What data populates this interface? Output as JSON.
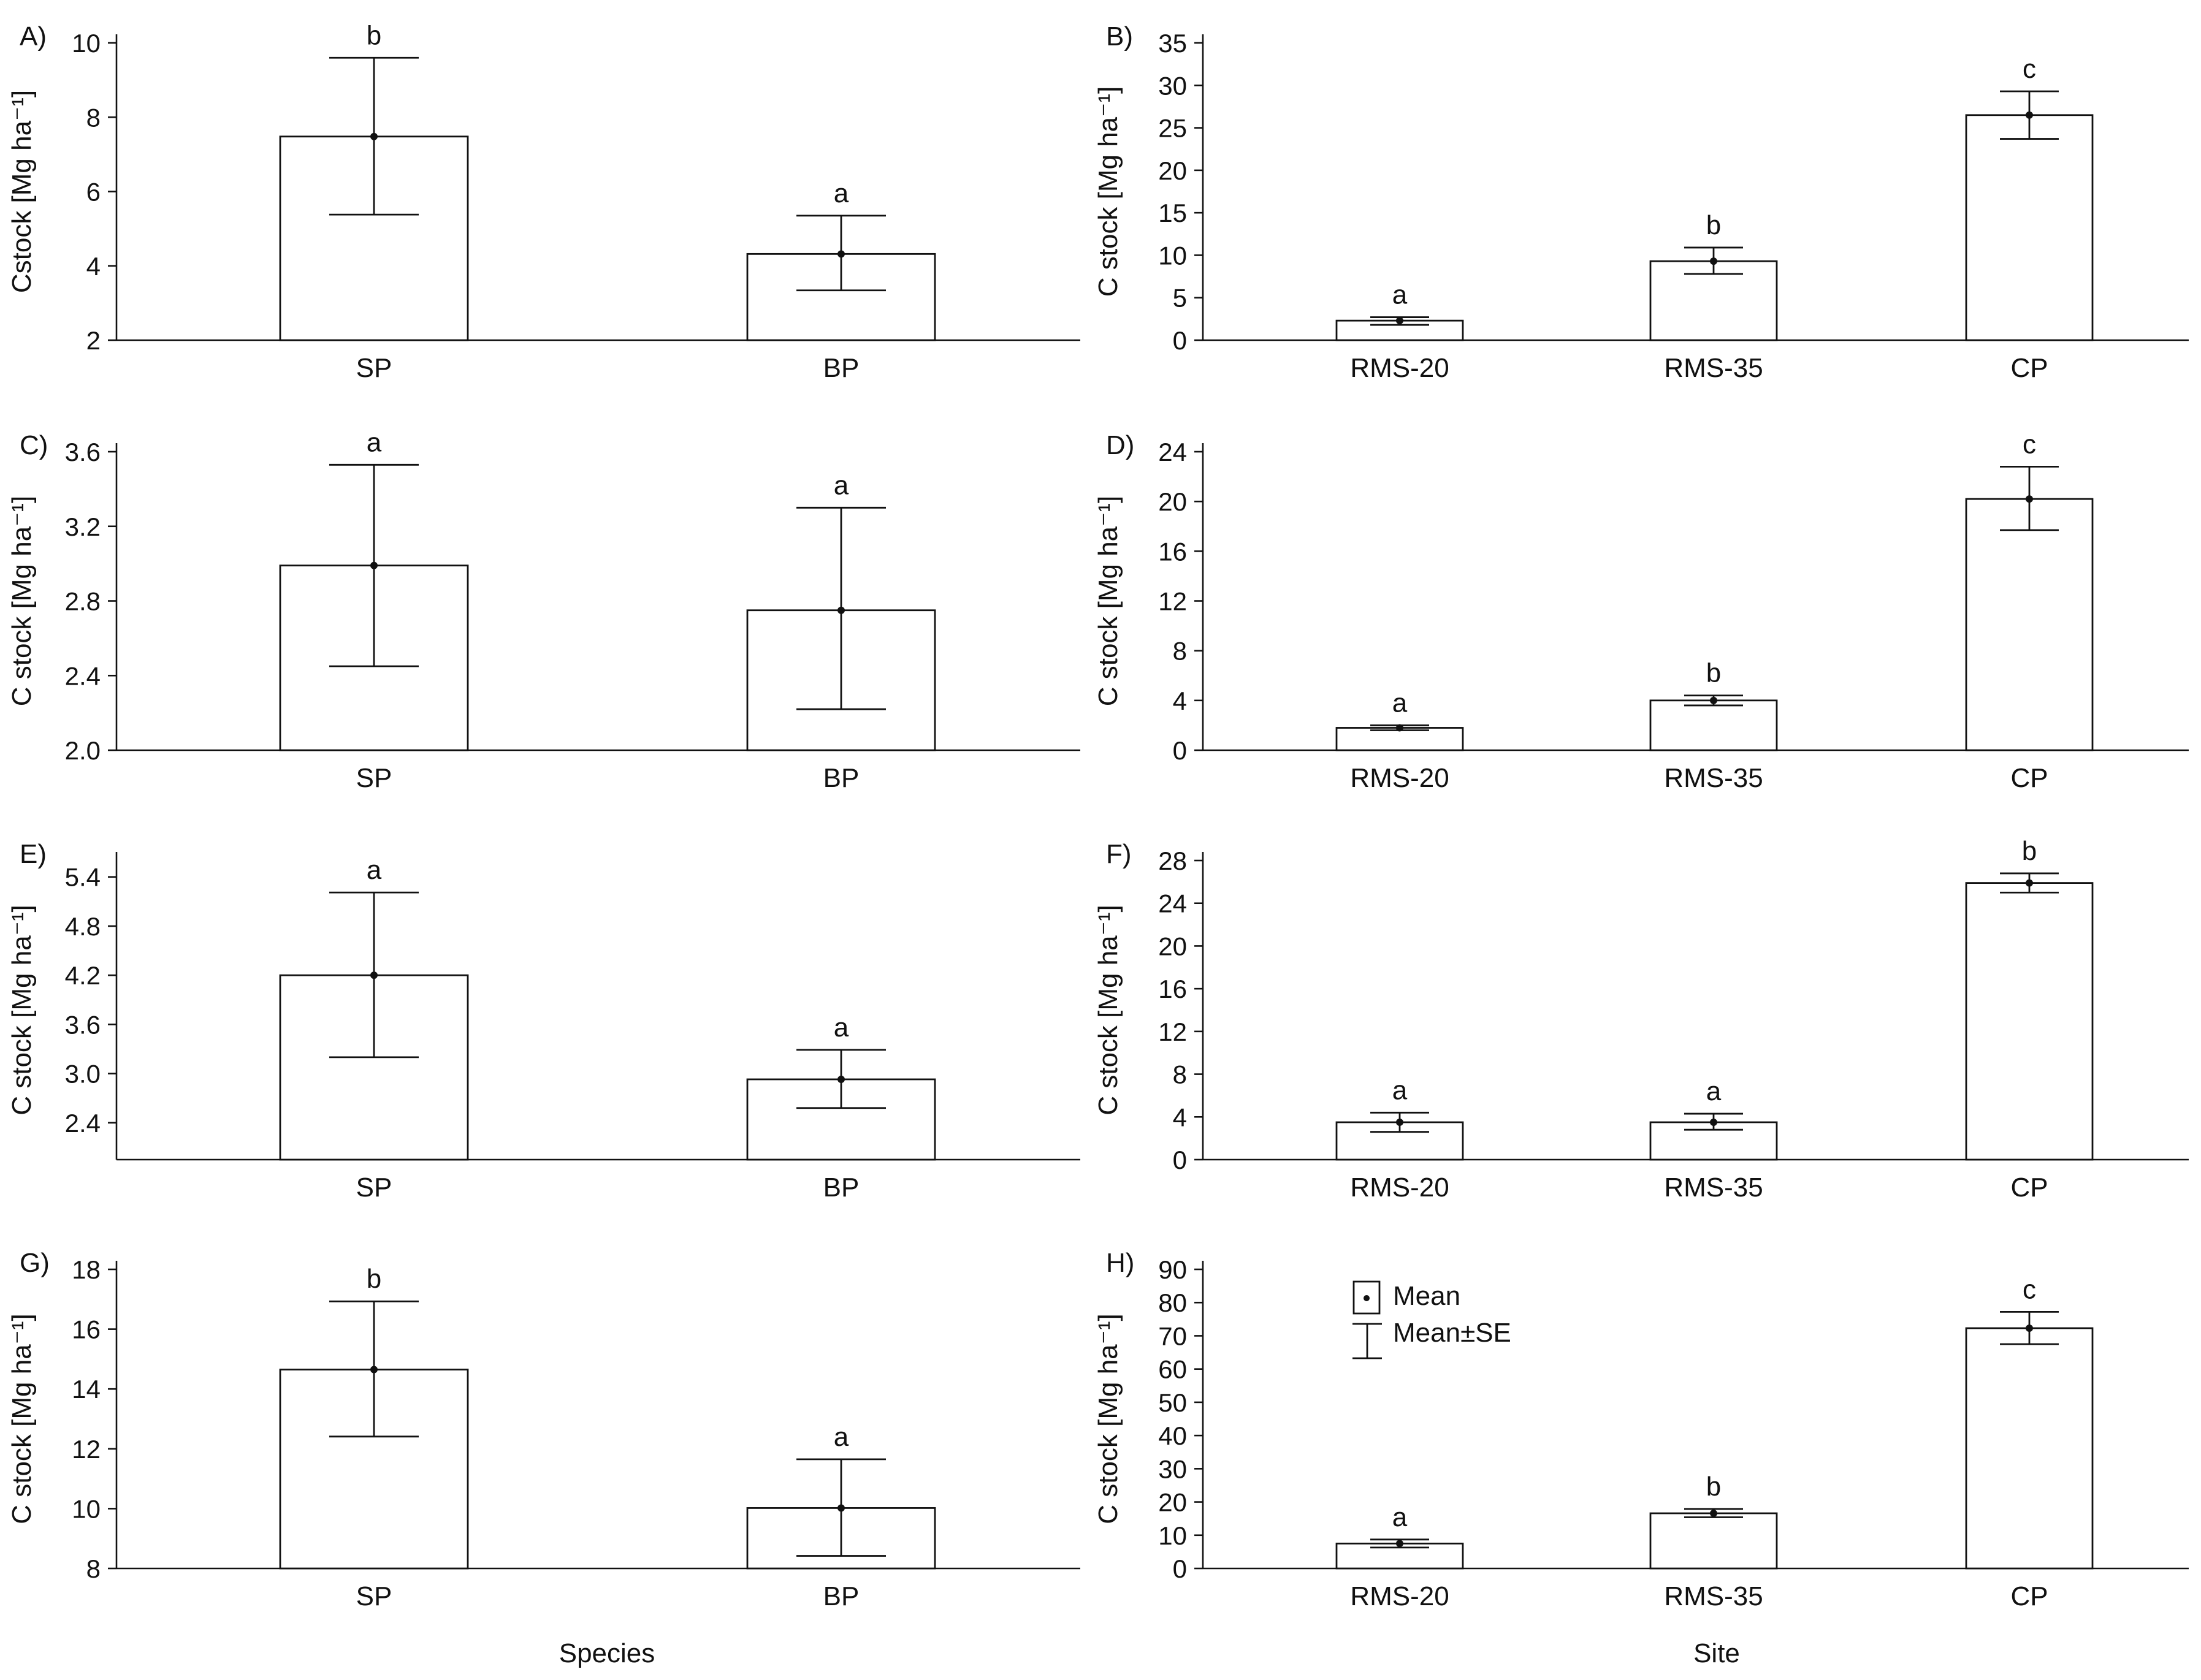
{
  "figure": {
    "x_titles": {
      "left": "Species",
      "right": "Site"
    },
    "legend": {
      "mean_label": "Mean",
      "se_label": "Mean±SE"
    }
  },
  "chart_data": [
    {
      "type": "bar",
      "panel": "A)",
      "ylabel": "Cstock  [Mg ha⁻¹]",
      "categories": [
        "SP",
        "BP"
      ],
      "values": [
        7.48,
        4.32
      ],
      "err_low": [
        5.38,
        3.34
      ],
      "err_high": [
        9.6,
        5.35
      ],
      "sig": [
        "b",
        "a"
      ],
      "ylim": [
        2,
        10
      ],
      "yticks": [
        2,
        4,
        6,
        8,
        10
      ],
      "ytick_labels": [
        "2",
        "4",
        "6",
        "8",
        "10"
      ]
    },
    {
      "type": "bar",
      "panel": "B)",
      "ylabel": "C stock [Mg ha⁻¹]",
      "categories": [
        "RMS-20",
        "RMS-35",
        "CP"
      ],
      "values": [
        2.3,
        9.3,
        26.5
      ],
      "err_low": [
        1.8,
        7.8,
        23.7
      ],
      "err_high": [
        2.7,
        10.9,
        29.3
      ],
      "sig": [
        "a",
        "b",
        "c"
      ],
      "ylim": [
        0,
        35
      ],
      "yticks": [
        0,
        5,
        10,
        15,
        20,
        25,
        30,
        35
      ],
      "ytick_labels": [
        "0",
        "5",
        "10",
        "15",
        "20",
        "25",
        "30",
        "35"
      ]
    },
    {
      "type": "bar",
      "panel": "C)",
      "ylabel": "C stock [Mg ha⁻¹]",
      "categories": [
        "SP",
        "BP"
      ],
      "values": [
        2.99,
        2.75
      ],
      "err_low": [
        2.45,
        2.22
      ],
      "err_high": [
        3.53,
        3.3
      ],
      "sig": [
        "a",
        "a"
      ],
      "ylim": [
        2.0,
        3.6
      ],
      "yticks": [
        2.0,
        2.4,
        2.8,
        3.2,
        3.6
      ],
      "ytick_labels": [
        "2.0",
        "2.4",
        "2.8",
        "3.2",
        "3.6"
      ]
    },
    {
      "type": "bar",
      "panel": "D)",
      "ylabel": "C stock [Mg ha⁻¹]",
      "categories": [
        "RMS-20",
        "RMS-35",
        "CP"
      ],
      "values": [
        1.8,
        4.0,
        20.2
      ],
      "err_low": [
        1.6,
        3.6,
        17.7
      ],
      "err_high": [
        2.0,
        4.4,
        22.8
      ],
      "sig": [
        "a",
        "b",
        "c"
      ],
      "ylim": [
        0,
        24
      ],
      "yticks": [
        0,
        4,
        8,
        12,
        16,
        20,
        24
      ],
      "ytick_labels": [
        "0",
        "4",
        "8",
        "12",
        "16",
        "20",
        "24"
      ]
    },
    {
      "type": "bar",
      "panel": "E)",
      "ylabel": "C stock [Mg ha⁻¹]",
      "categories": [
        "SP",
        "BP"
      ],
      "values": [
        4.2,
        2.93
      ],
      "err_low": [
        3.2,
        2.58
      ],
      "err_high": [
        5.21,
        3.29
      ],
      "sig": [
        "a",
        "a"
      ],
      "ylim": [
        1.95,
        5.6
      ],
      "yticks": [
        2.4,
        3.0,
        3.6,
        4.2,
        4.8,
        5.4
      ],
      "ytick_labels": [
        "2.4",
        "3.0",
        "3.6",
        "4.2",
        "4.8",
        "5.4"
      ]
    },
    {
      "type": "bar",
      "panel": "F)",
      "ylabel": "C stock [Mg ha⁻¹]",
      "categories": [
        "RMS-20",
        "RMS-35",
        "CP"
      ],
      "values": [
        3.5,
        3.5,
        25.9
      ],
      "err_low": [
        2.6,
        2.8,
        25.0
      ],
      "err_high": [
        4.4,
        4.3,
        26.8
      ],
      "sig": [
        "a",
        "a",
        "b"
      ],
      "ylim": [
        0,
        28
      ],
      "yticks": [
        0,
        4,
        8,
        12,
        16,
        20,
        24,
        28
      ],
      "ytick_labels": [
        "0",
        "4",
        "8",
        "12",
        "16",
        "20",
        "24",
        "28"
      ]
    },
    {
      "type": "bar",
      "panel": "G)",
      "ylabel": "C stock [Mg ha⁻¹]",
      "categories": [
        "SP",
        "BP"
      ],
      "values": [
        14.65,
        10.02
      ],
      "err_low": [
        12.41,
        8.42
      ],
      "err_high": [
        16.93,
        11.65
      ],
      "sig": [
        "b",
        "a"
      ],
      "ylim": [
        8,
        18
      ],
      "yticks": [
        8,
        10,
        12,
        14,
        16,
        18
      ],
      "ytick_labels": [
        "8",
        "10",
        "12",
        "14",
        "16",
        "18"
      ]
    },
    {
      "type": "bar",
      "panel": "H)",
      "ylabel": "C stock [Mg ha⁻¹]",
      "categories": [
        "RMS-20",
        "RMS-35",
        "CP"
      ],
      "values": [
        7.5,
        16.6,
        72.3
      ],
      "err_low": [
        6.3,
        15.4,
        67.5
      ],
      "err_high": [
        8.7,
        17.9,
        77.2
      ],
      "sig": [
        "a",
        "b",
        "c"
      ],
      "ylim": [
        0,
        90
      ],
      "yticks": [
        0,
        10,
        20,
        30,
        40,
        50,
        60,
        70,
        80,
        90
      ],
      "ytick_labels": [
        "0",
        "10",
        "20",
        "30",
        "40",
        "50",
        "60",
        "70",
        "80",
        "90"
      ]
    }
  ]
}
